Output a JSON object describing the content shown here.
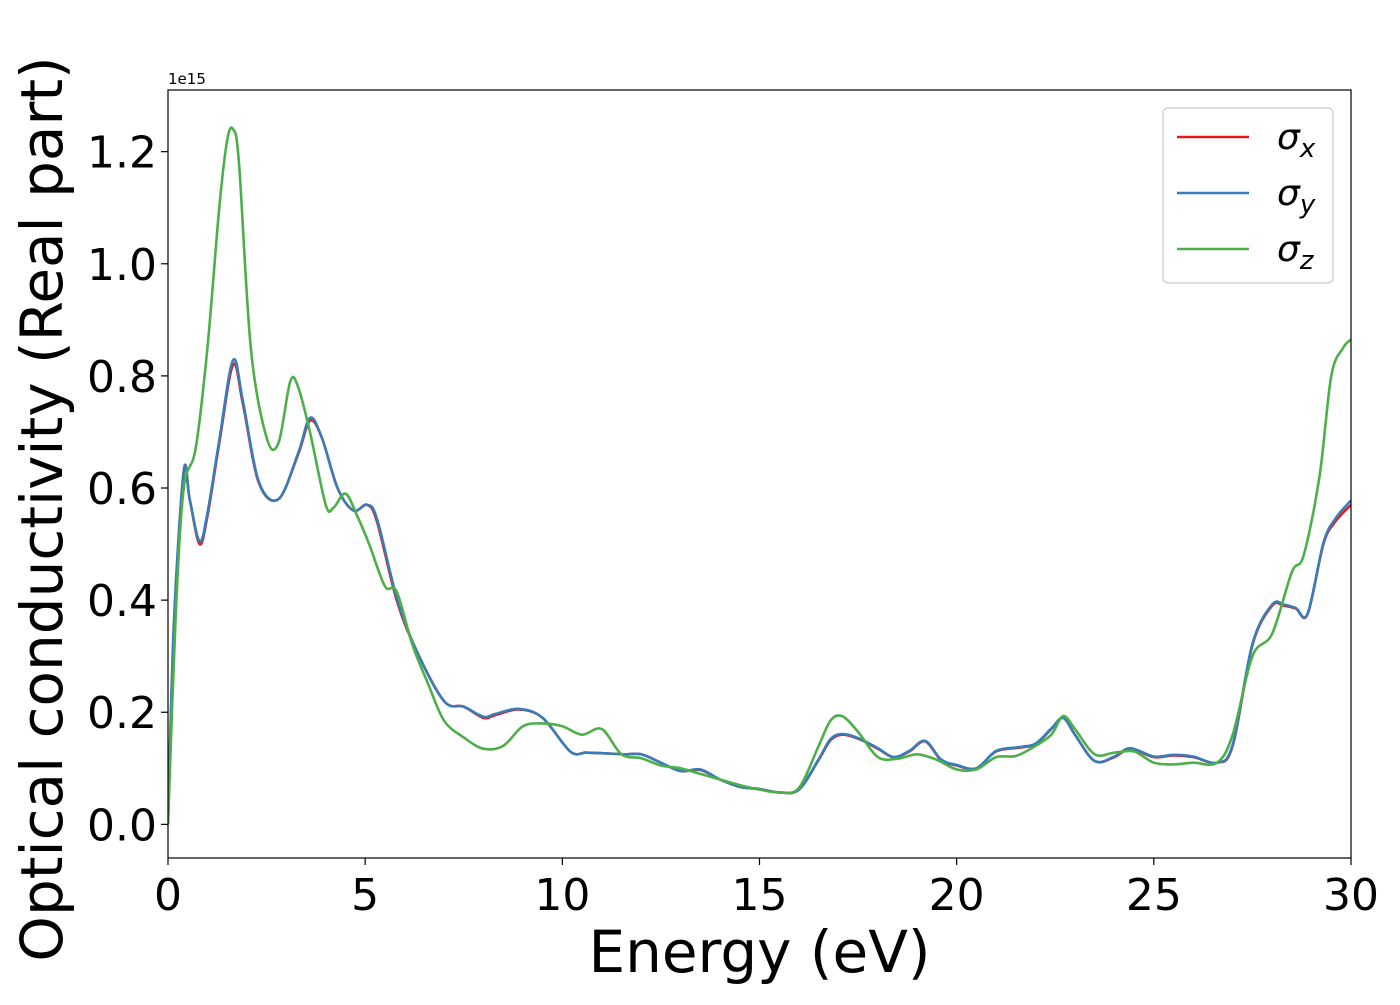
{
  "chart_data": {
    "type": "line",
    "title": "",
    "xlabel": "Energy (eV)",
    "ylabel": "Optical conductivity (Real part)",
    "offset_text": "1e15",
    "xlim": [
      0,
      30
    ],
    "ylim": [
      -0.06,
      1.31
    ],
    "x_ticks": [
      0,
      5,
      10,
      15,
      20,
      25,
      30
    ],
    "x_tick_labels": [
      "0",
      "5",
      "10",
      "15",
      "20",
      "25",
      "30"
    ],
    "y_ticks": [
      0.0,
      0.2,
      0.4,
      0.6,
      0.8,
      1.0,
      1.2
    ],
    "y_tick_labels": [
      "0.0",
      "0.2",
      "0.4",
      "0.6",
      "0.8",
      "1.0",
      "1.2"
    ],
    "grid": false,
    "legend_position": "top-right",
    "series": [
      {
        "name": "σx",
        "label_base": "σ",
        "label_sub": "x",
        "color": "#e41a1c",
        "x": [
          0,
          0.15,
          0.4,
          0.55,
          0.8,
          1.0,
          1.3,
          1.65,
          1.9,
          2.3,
          2.8,
          3.3,
          3.6,
          3.9,
          4.3,
          4.7,
          5.05,
          5.3,
          5.8,
          6.3,
          7.0,
          7.5,
          8.0,
          8.3,
          8.9,
          9.5,
          10.2,
          10.6,
          11.0,
          11.6,
          12.0,
          12.5,
          13.0,
          13.5,
          14.0,
          14.5,
          15.0,
          15.5,
          16.0,
          16.5,
          16.8,
          17.1,
          17.5,
          18.0,
          18.4,
          18.8,
          19.2,
          19.6,
          20.0,
          20.5,
          21.0,
          21.6,
          22.0,
          22.4,
          22.7,
          23.0,
          23.5,
          24.0,
          24.4,
          25.0,
          25.5,
          26.0,
          26.6,
          27.0,
          27.5,
          28.0,
          28.3,
          28.6,
          28.9,
          29.3,
          29.6,
          30.0
        ],
        "y": [
          0.0,
          0.35,
          0.63,
          0.58,
          0.5,
          0.55,
          0.68,
          0.82,
          0.75,
          0.61,
          0.58,
          0.66,
          0.72,
          0.69,
          0.6,
          0.56,
          0.57,
          0.54,
          0.4,
          0.31,
          0.22,
          0.21,
          0.19,
          0.195,
          0.205,
          0.19,
          0.13,
          0.128,
          0.127,
          0.125,
          0.125,
          0.11,
          0.095,
          0.097,
          0.08,
          0.067,
          0.063,
          0.057,
          0.062,
          0.115,
          0.15,
          0.16,
          0.153,
          0.135,
          0.12,
          0.13,
          0.148,
          0.115,
          0.105,
          0.1,
          0.13,
          0.137,
          0.143,
          0.17,
          0.19,
          0.16,
          0.113,
          0.12,
          0.135,
          0.12,
          0.123,
          0.12,
          0.11,
          0.14,
          0.32,
          0.39,
          0.39,
          0.385,
          0.375,
          0.5,
          0.54,
          0.57
        ]
      },
      {
        "name": "σy",
        "label_base": "σ",
        "label_sub": "y",
        "color": "#377eb8",
        "x": [
          0,
          0.15,
          0.4,
          0.55,
          0.8,
          1.0,
          1.3,
          1.65,
          1.9,
          2.3,
          2.8,
          3.3,
          3.6,
          3.9,
          4.3,
          4.7,
          5.05,
          5.3,
          5.8,
          6.3,
          7.0,
          7.5,
          8.0,
          8.3,
          8.9,
          9.5,
          10.2,
          10.6,
          11.0,
          11.6,
          12.0,
          12.5,
          13.0,
          13.5,
          14.0,
          14.5,
          15.0,
          15.5,
          16.0,
          16.5,
          16.8,
          17.1,
          17.5,
          18.0,
          18.4,
          18.8,
          19.2,
          19.6,
          20.0,
          20.5,
          21.0,
          21.6,
          22.0,
          22.4,
          22.7,
          23.0,
          23.5,
          24.0,
          24.4,
          25.0,
          25.5,
          26.0,
          26.6,
          27.0,
          27.5,
          28.0,
          28.3,
          28.6,
          28.9,
          29.3,
          29.6,
          30.0
        ],
        "y": [
          0.0,
          0.36,
          0.63,
          0.58,
          0.505,
          0.555,
          0.685,
          0.828,
          0.755,
          0.612,
          0.58,
          0.662,
          0.725,
          0.69,
          0.6,
          0.56,
          0.57,
          0.545,
          0.405,
          0.31,
          0.22,
          0.21,
          0.192,
          0.197,
          0.206,
          0.19,
          0.13,
          0.128,
          0.127,
          0.125,
          0.125,
          0.11,
          0.095,
          0.098,
          0.08,
          0.067,
          0.063,
          0.057,
          0.062,
          0.116,
          0.152,
          0.161,
          0.154,
          0.136,
          0.12,
          0.131,
          0.149,
          0.116,
          0.106,
          0.1,
          0.131,
          0.138,
          0.144,
          0.171,
          0.19,
          0.16,
          0.113,
          0.121,
          0.136,
          0.121,
          0.124,
          0.121,
          0.11,
          0.142,
          0.322,
          0.392,
          0.392,
          0.386,
          0.376,
          0.502,
          0.545,
          0.578
        ]
      },
      {
        "name": "σz",
        "label_base": "σ",
        "label_sub": "z",
        "color": "#4daf4a",
        "x": [
          0,
          0.2,
          0.4,
          0.7,
          1.0,
          1.3,
          1.5,
          1.65,
          1.8,
          2.1,
          2.5,
          2.8,
          3.1,
          3.3,
          3.6,
          4.0,
          4.2,
          4.5,
          4.8,
          5.1,
          5.5,
          5.8,
          6.2,
          6.6,
          7.0,
          7.5,
          8.0,
          8.5,
          9.0,
          9.5,
          10.0,
          10.5,
          11.0,
          11.5,
          12.0,
          12.5,
          13.0,
          13.5,
          14.0,
          14.5,
          15.0,
          15.5,
          16.0,
          16.5,
          16.8,
          17.1,
          17.5,
          18.0,
          18.5,
          19.0,
          19.5,
          20.0,
          20.5,
          21.0,
          21.5,
          22.0,
          22.4,
          22.7,
          23.0,
          23.5,
          24.0,
          24.5,
          25.0,
          25.5,
          26.0,
          26.6,
          27.0,
          27.5,
          28.0,
          28.5,
          28.8,
          29.2,
          29.5,
          29.8,
          30.0
        ],
        "y": [
          0.0,
          0.38,
          0.6,
          0.67,
          0.85,
          1.1,
          1.22,
          1.24,
          1.18,
          0.85,
          0.69,
          0.68,
          0.79,
          0.78,
          0.7,
          0.57,
          0.565,
          0.59,
          0.55,
          0.5,
          0.425,
          0.415,
          0.32,
          0.25,
          0.185,
          0.155,
          0.135,
          0.14,
          0.175,
          0.18,
          0.175,
          0.16,
          0.17,
          0.125,
          0.118,
          0.105,
          0.1,
          0.09,
          0.08,
          0.07,
          0.062,
          0.057,
          0.065,
          0.14,
          0.185,
          0.193,
          0.165,
          0.12,
          0.117,
          0.125,
          0.115,
          0.098,
          0.098,
          0.12,
          0.122,
          0.14,
          0.16,
          0.193,
          0.17,
          0.125,
          0.128,
          0.13,
          0.11,
          0.107,
          0.11,
          0.11,
          0.16,
          0.3,
          0.34,
          0.45,
          0.48,
          0.62,
          0.8,
          0.85,
          0.865
        ]
      }
    ]
  }
}
